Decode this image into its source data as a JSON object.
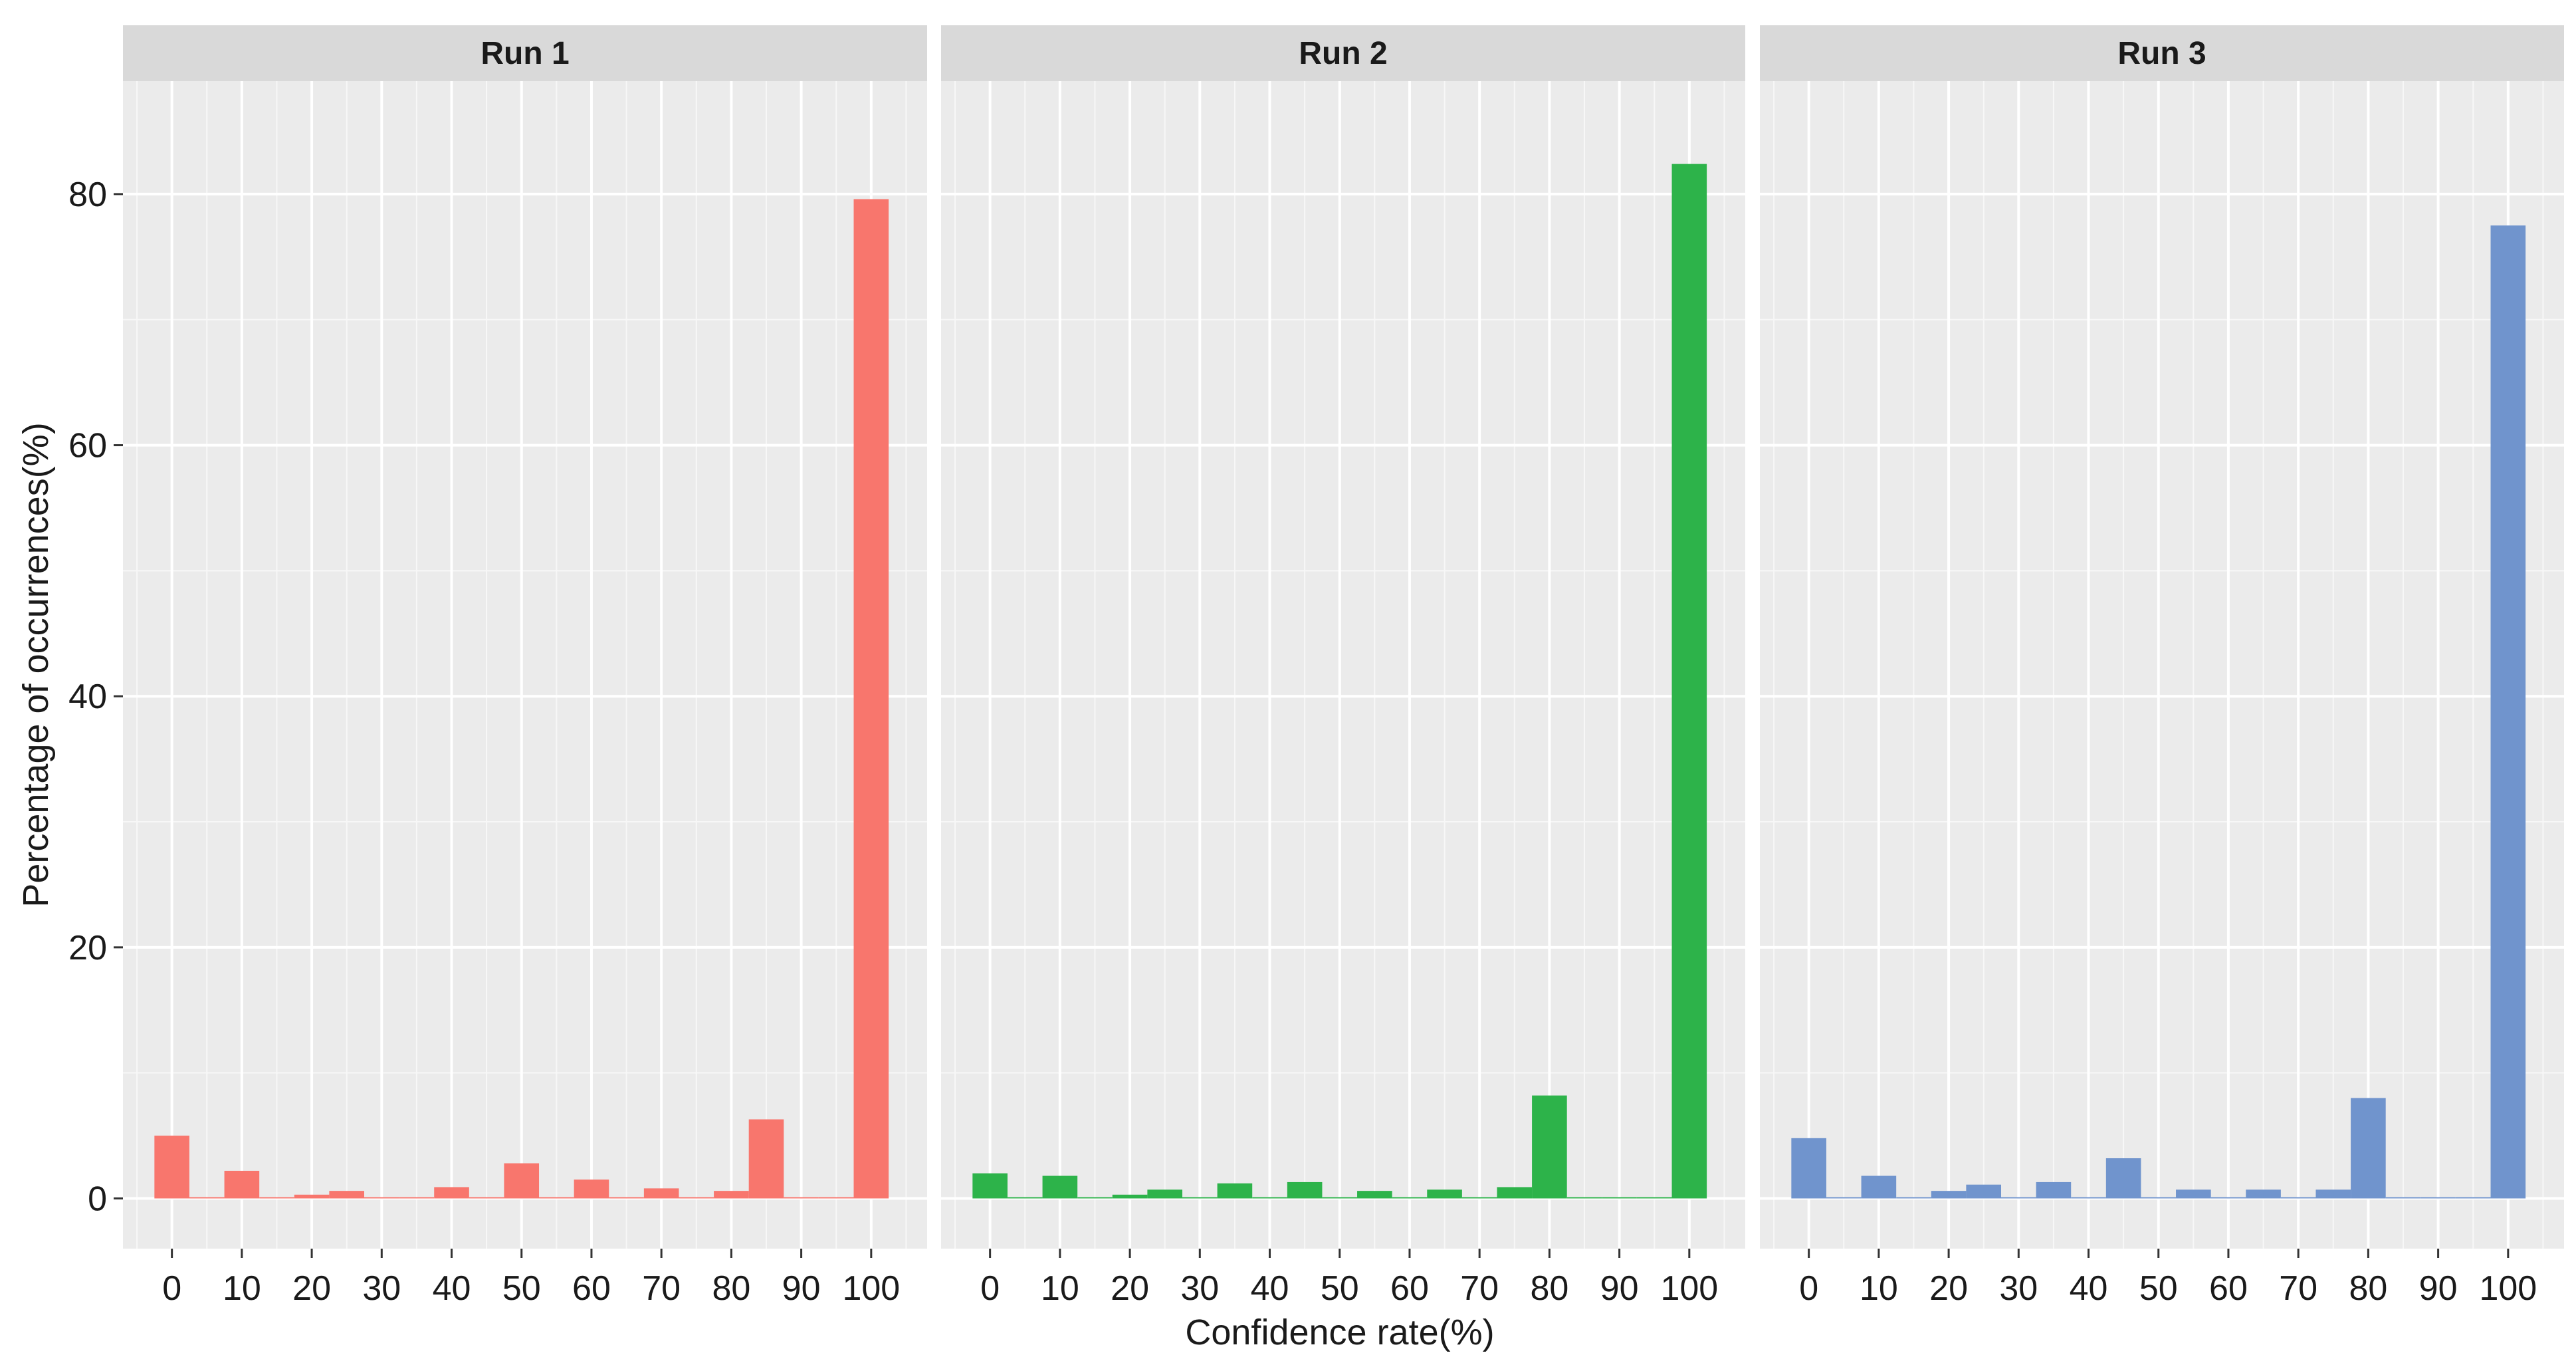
{
  "chart_data": {
    "type": "bar",
    "xlabel": "Confidence rate(%)",
    "ylabel": "Percentage of occurrences(%)",
    "x_ticks": [
      0,
      10,
      20,
      30,
      40,
      50,
      60,
      70,
      80,
      90,
      100
    ],
    "y_ticks": [
      0,
      20,
      40,
      60,
      80
    ],
    "ylim": [
      -4,
      89
    ],
    "xlim": [
      -7,
      108
    ],
    "grid": true,
    "legend": "none",
    "panel_background": "#EBEBEB",
    "strip_background": "#D9D9D9",
    "panels": [
      {
        "title": "Run 1",
        "color": "#F8766D",
        "bins": [
          {
            "x": 0,
            "y": 5.0
          },
          {
            "x": 5,
            "y": 0.1
          },
          {
            "x": 10,
            "y": 2.2
          },
          {
            "x": 15,
            "y": 0.1
          },
          {
            "x": 20,
            "y": 0.3
          },
          {
            "x": 25,
            "y": 0.6
          },
          {
            "x": 30,
            "y": 0.1
          },
          {
            "x": 35,
            "y": 0.1
          },
          {
            "x": 40,
            "y": 0.9
          },
          {
            "x": 45,
            "y": 0.1
          },
          {
            "x": 50,
            "y": 2.8
          },
          {
            "x": 55,
            "y": 0.1
          },
          {
            "x": 60,
            "y": 1.5
          },
          {
            "x": 65,
            "y": 0.1
          },
          {
            "x": 70,
            "y": 0.8
          },
          {
            "x": 75,
            "y": 0.1
          },
          {
            "x": 80,
            "y": 0.6
          },
          {
            "x": 85,
            "y": 6.3
          },
          {
            "x": 90,
            "y": 0.1
          },
          {
            "x": 95,
            "y": 0.1
          },
          {
            "x": 100,
            "y": 79.6
          }
        ]
      },
      {
        "title": "Run 2",
        "color": "#2DB34A",
        "bins": [
          {
            "x": 0,
            "y": 2.0
          },
          {
            "x": 5,
            "y": 0.1
          },
          {
            "x": 10,
            "y": 1.8
          },
          {
            "x": 15,
            "y": 0.1
          },
          {
            "x": 20,
            "y": 0.3
          },
          {
            "x": 25,
            "y": 0.7
          },
          {
            "x": 30,
            "y": 0.1
          },
          {
            "x": 35,
            "y": 1.2
          },
          {
            "x": 40,
            "y": 0.1
          },
          {
            "x": 45,
            "y": 1.3
          },
          {
            "x": 50,
            "y": 0.1
          },
          {
            "x": 55,
            "y": 0.6
          },
          {
            "x": 60,
            "y": 0.1
          },
          {
            "x": 65,
            "y": 0.7
          },
          {
            "x": 70,
            "y": 0.1
          },
          {
            "x": 75,
            "y": 0.9
          },
          {
            "x": 80,
            "y": 8.2
          },
          {
            "x": 85,
            "y": 0.1
          },
          {
            "x": 90,
            "y": 0.1
          },
          {
            "x": 95,
            "y": 0.1
          },
          {
            "x": 100,
            "y": 82.4
          }
        ]
      },
      {
        "title": "Run 3",
        "color": "#7094CD",
        "bins": [
          {
            "x": 0,
            "y": 4.8
          },
          {
            "x": 5,
            "y": 0.1
          },
          {
            "x": 10,
            "y": 1.8
          },
          {
            "x": 15,
            "y": 0.1
          },
          {
            "x": 20,
            "y": 0.6
          },
          {
            "x": 25,
            "y": 1.1
          },
          {
            "x": 30,
            "y": 0.1
          },
          {
            "x": 35,
            "y": 1.3
          },
          {
            "x": 40,
            "y": 0.1
          },
          {
            "x": 45,
            "y": 3.2
          },
          {
            "x": 50,
            "y": 0.1
          },
          {
            "x": 55,
            "y": 0.7
          },
          {
            "x": 60,
            "y": 0.1
          },
          {
            "x": 65,
            "y": 0.7
          },
          {
            "x": 70,
            "y": 0.1
          },
          {
            "x": 75,
            "y": 0.7
          },
          {
            "x": 80,
            "y": 8.0
          },
          {
            "x": 85,
            "y": 0.1
          },
          {
            "x": 90,
            "y": 0.1
          },
          {
            "x": 95,
            "y": 0.1
          },
          {
            "x": 100,
            "y": 77.5
          }
        ]
      }
    ]
  }
}
